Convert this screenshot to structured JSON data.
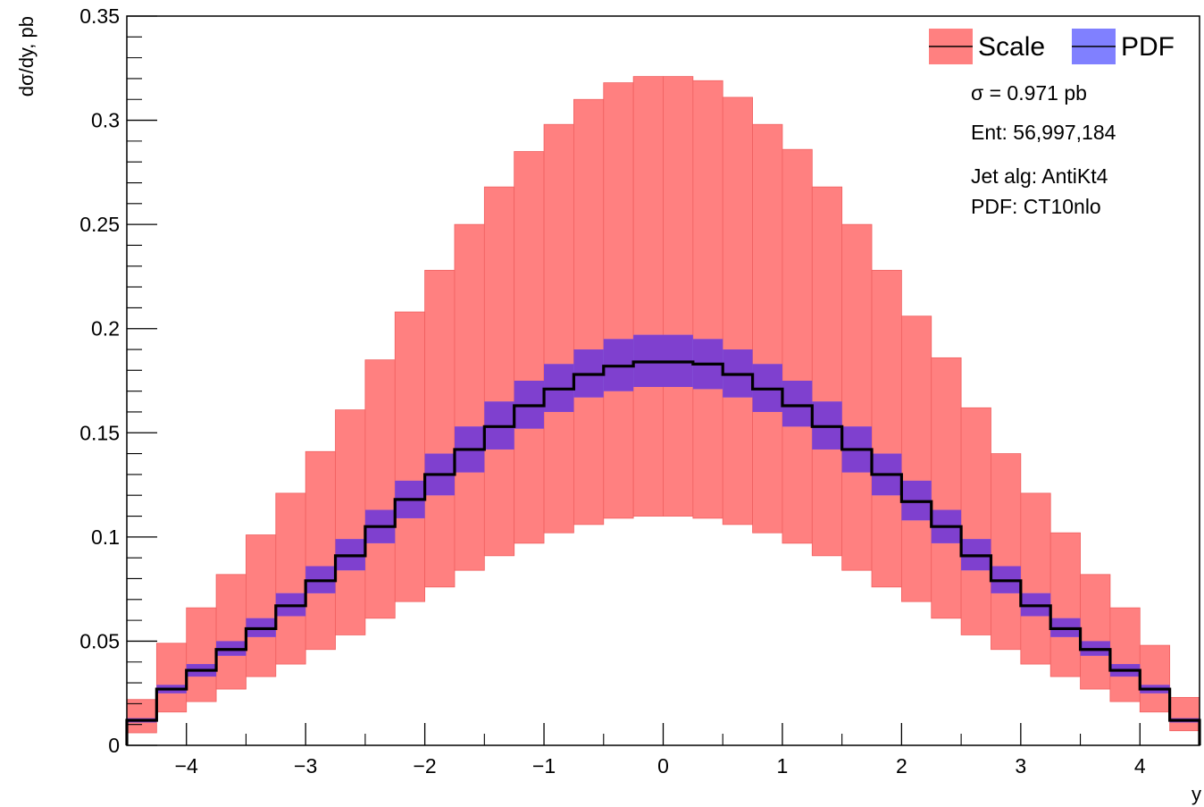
{
  "chart_data": {
    "type": "histogram",
    "xlabel": "y",
    "ylabel": "dσ/dy, pb",
    "xlim": [
      -4.5,
      4.5
    ],
    "ylim": [
      0,
      0.35
    ],
    "x_ticks": [
      "−4",
      "−3",
      "−2",
      "−1",
      "0",
      "1",
      "2",
      "3",
      "4"
    ],
    "y_ticks": [
      "0",
      "0.05",
      "0.1",
      "0.15",
      "0.2",
      "0.25",
      "0.3",
      "0.35"
    ],
    "bin_edges": [
      -4.5,
      -4.25,
      -4.0,
      -3.75,
      -3.5,
      -3.25,
      -3.0,
      -2.75,
      -2.5,
      -2.25,
      -2.0,
      -1.75,
      -1.5,
      -1.25,
      -1.0,
      -0.75,
      -0.5,
      -0.25,
      0.0,
      0.25,
      0.5,
      0.75,
      1.0,
      1.25,
      1.5,
      1.75,
      2.0,
      2.25,
      2.5,
      2.75,
      3.0,
      3.25,
      3.5,
      3.75,
      4.0,
      4.25,
      4.5
    ],
    "series": [
      {
        "name": "Central",
        "values": [
          0.012,
          0.027,
          0.036,
          0.046,
          0.056,
          0.067,
          0.079,
          0.091,
          0.105,
          0.118,
          0.13,
          0.142,
          0.153,
          0.163,
          0.171,
          0.178,
          0.182,
          0.184,
          0.184,
          0.183,
          0.178,
          0.171,
          0.163,
          0.153,
          0.142,
          0.13,
          0.117,
          0.105,
          0.091,
          0.079,
          0.067,
          0.056,
          0.046,
          0.036,
          0.027,
          0.012
        ],
        "color": "#000000"
      },
      {
        "name": "Scale",
        "lower": [
          0.006,
          0.016,
          0.021,
          0.027,
          0.033,
          0.039,
          0.046,
          0.053,
          0.061,
          0.069,
          0.076,
          0.084,
          0.091,
          0.097,
          0.102,
          0.106,
          0.109,
          0.11,
          0.11,
          0.109,
          0.106,
          0.102,
          0.097,
          0.091,
          0.084,
          0.076,
          0.069,
          0.061,
          0.053,
          0.046,
          0.039,
          0.033,
          0.027,
          0.021,
          0.016,
          0.007
        ],
        "upper": [
          0.022,
          0.049,
          0.066,
          0.082,
          0.101,
          0.121,
          0.141,
          0.161,
          0.185,
          0.208,
          0.228,
          0.25,
          0.268,
          0.285,
          0.298,
          0.31,
          0.318,
          0.321,
          0.321,
          0.319,
          0.311,
          0.298,
          0.286,
          0.268,
          0.25,
          0.228,
          0.206,
          0.186,
          0.162,
          0.14,
          0.121,
          0.102,
          0.082,
          0.066,
          0.048,
          0.023
        ],
        "color": "#ff8080"
      },
      {
        "name": "PDF",
        "lower": [
          0.011,
          0.025,
          0.033,
          0.043,
          0.052,
          0.062,
          0.073,
          0.084,
          0.097,
          0.109,
          0.12,
          0.131,
          0.142,
          0.152,
          0.16,
          0.167,
          0.17,
          0.172,
          0.172,
          0.171,
          0.167,
          0.16,
          0.153,
          0.142,
          0.131,
          0.12,
          0.108,
          0.097,
          0.084,
          0.073,
          0.062,
          0.052,
          0.043,
          0.033,
          0.025,
          0.011
        ],
        "upper": [
          0.013,
          0.029,
          0.039,
          0.05,
          0.061,
          0.073,
          0.086,
          0.099,
          0.113,
          0.127,
          0.14,
          0.153,
          0.165,
          0.175,
          0.183,
          0.19,
          0.195,
          0.197,
          0.197,
          0.195,
          0.19,
          0.183,
          0.175,
          0.165,
          0.153,
          0.14,
          0.127,
          0.113,
          0.099,
          0.086,
          0.073,
          0.061,
          0.05,
          0.039,
          0.029,
          0.013
        ],
        "color": "#8080ff"
      }
    ],
    "legend": {
      "position": "top-right",
      "entries": [
        {
          "label": "Scale",
          "color": "#ff8080"
        },
        {
          "label": "PDF",
          "color": "#8080ff"
        }
      ]
    },
    "annotations": [
      "σ = 0.971 pb",
      "Ent: 56,997,184",
      "Jet alg: AntiKt4",
      "PDF: CT10nlo"
    ]
  }
}
